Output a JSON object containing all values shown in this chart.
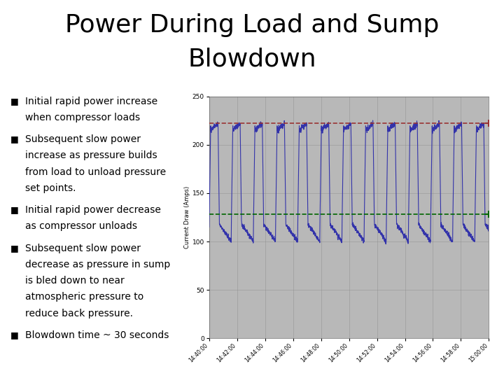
{
  "title_line1": "Power During Load and Sump",
  "title_line2": "Blowdown",
  "title_fontsize": 26,
  "title_color": "#000000",
  "background_color": "#ffffff",
  "plot_bg_color": "#b8b8b8",
  "ylabel": "Current Draw (Amps)",
  "ylim": [
    0,
    250
  ],
  "yticks": [
    0,
    50,
    100,
    150,
    200,
    250
  ],
  "xtick_labels": [
    "14:40:00",
    "14:42:00",
    "14:44:00",
    "14:46:00",
    "14:48:00",
    "14:50:00",
    "14:52:00",
    "14:54:00",
    "14:56:00",
    "14:58:00",
    "15:00:00"
  ],
  "line_color": "#3333aa",
  "hline1_value": 222,
  "hline1_color": "#993333",
  "hline2_value": 128,
  "hline2_color": "#006600",
  "bullet_points": [
    [
      "Initial rapid power increase",
      "when compressor loads"
    ],
    [
      "Subsequent slow power",
      "increase as pressure builds",
      "from load to unload pressure",
      "set points."
    ],
    [
      "Initial rapid power decrease",
      "as compressor unloads"
    ],
    [
      "Subsequent slow power",
      "decrease as pressure in sump",
      "is bled down to near",
      "atmospheric pressure to",
      "reduce back pressure."
    ],
    [
      "Blowdown time ~ 30 seconds"
    ]
  ],
  "bullet_fontsize": 10
}
